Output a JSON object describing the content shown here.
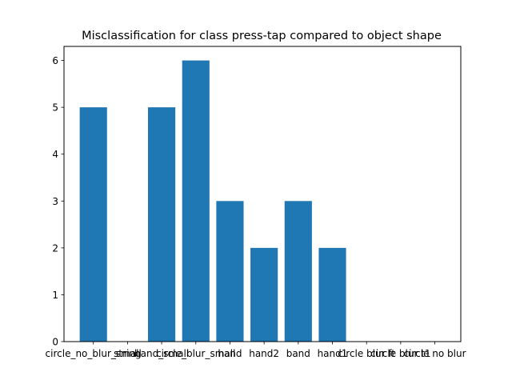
{
  "chart_data": {
    "type": "bar",
    "title": "Misclassification for class press-tap compared to object shape",
    "xlabel": "",
    "ylabel": "",
    "categories": [
      "circle_no_blur_small",
      "string",
      "hand_small",
      "circle_blur_small",
      "hand",
      "hand2",
      "band",
      "hand1",
      "circle blur ft",
      "circle blur t1",
      "circle no blur"
    ],
    "values": [
      5,
      0,
      5,
      6,
      3,
      2,
      3,
      2,
      0,
      0,
      0
    ],
    "ylim": [
      0,
      6.3
    ],
    "yticks": [
      0,
      1,
      2,
      3,
      4,
      5,
      6
    ],
    "grid": false,
    "legend": "none",
    "bar_color": "#1f77b4"
  }
}
